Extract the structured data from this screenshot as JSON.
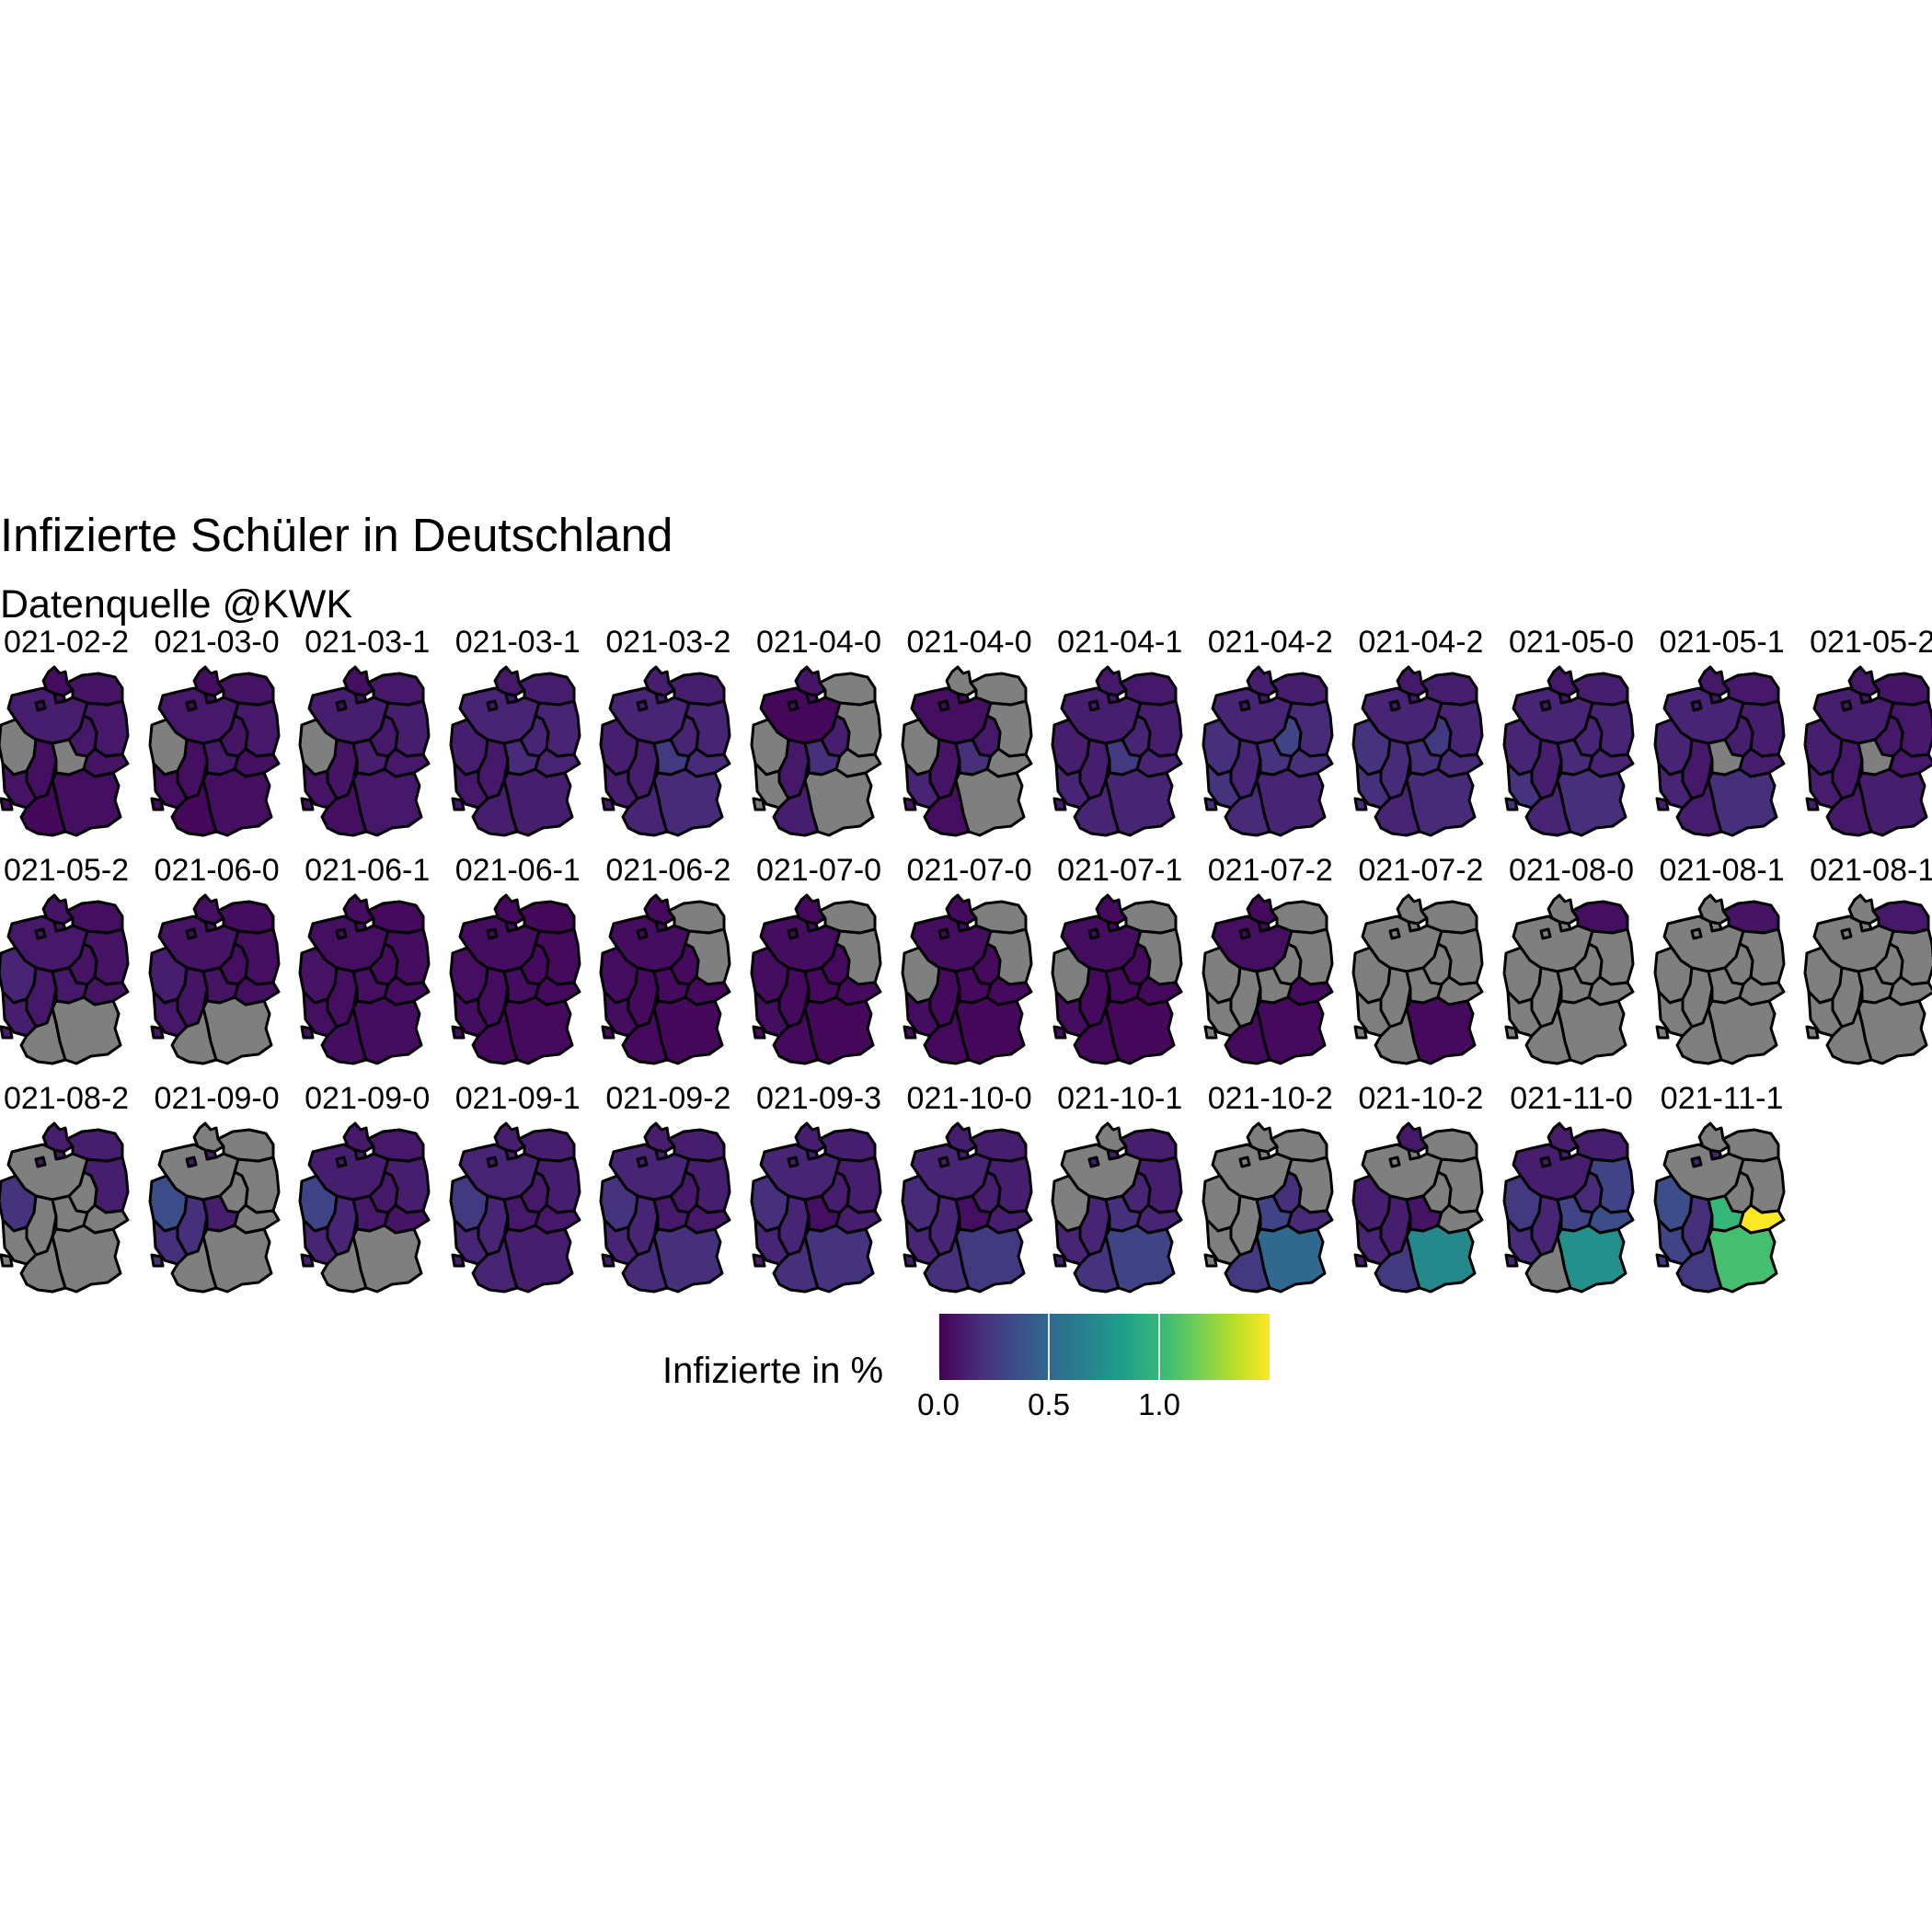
{
  "title": "Infizierte Schüler in Deutschland",
  "subtitle": "Datenquelle @KWK",
  "colors": {
    "missing": "#7f7f7f",
    "border": "#000000",
    "viridis": [
      "#440154",
      "#482878",
      "#3e4a89",
      "#31688e",
      "#26828e",
      "#1f9e89",
      "#35b779",
      "#6ece58",
      "#b5de2b",
      "#fde725"
    ]
  },
  "legend": {
    "title": "Infizierte in %",
    "ticks": [
      {
        "value": 0.0,
        "label": "0.0"
      },
      {
        "value": 0.5,
        "label": "0.5"
      },
      {
        "value": 1.0,
        "label": "1.0"
      }
    ],
    "range": [
      0,
      1.5
    ]
  },
  "chart_data": {
    "type": "heatmap",
    "title": "Infizierte Schüler in Deutschland",
    "subtitle": "Datenquelle @KWK",
    "fill_label": "Infizierte in %",
    "color_scale": "viridis",
    "range": [
      0,
      1.5
    ],
    "regions": [
      "SH",
      "HH",
      "NI",
      "HB",
      "NW",
      "HE",
      "RP",
      "SL",
      "BW",
      "BY",
      "BE",
      "BB",
      "MV",
      "ST",
      "TH",
      "SN"
    ],
    "panels": [
      {
        "label": "021-02-2",
        "values": {
          "SH": 0.05,
          "HH": 0.05,
          "NI": 0.12,
          "HB": 0.05,
          "NW": null,
          "HE": 0.06,
          "RP": 0.08,
          "SL": 0.06,
          "BW": 0.03,
          "BY": 0.06,
          "BE": 0.1,
          "BB": 0.1,
          "MV": 0.08,
          "ST": 0.1,
          "TH": null,
          "SN": 0.08
        }
      },
      {
        "label": "021-03-0",
        "values": {
          "SH": 0.05,
          "HH": 0.05,
          "NI": 0.1,
          "HB": 0.05,
          "NW": null,
          "HE": 0.06,
          "RP": 0.06,
          "SL": 0.05,
          "BW": 0.03,
          "BY": 0.06,
          "BE": 0.1,
          "BB": 0.1,
          "MV": 0.08,
          "ST": 0.08,
          "TH": 0.1,
          "SN": 0.06
        }
      },
      {
        "label": "021-03-1",
        "values": {
          "SH": 0.06,
          "HH": 0.06,
          "NI": 0.12,
          "HB": 0.06,
          "NW": null,
          "HE": 0.08,
          "RP": 0.08,
          "SL": 0.06,
          "BW": 0.06,
          "BY": 0.1,
          "BE": 0.12,
          "BB": 0.12,
          "MV": 0.1,
          "ST": 0.1,
          "TH": 0.12,
          "SN": 0.1
        }
      },
      {
        "label": "021-03-1",
        "values": {
          "SH": 0.1,
          "HH": 0.1,
          "NI": 0.15,
          "HB": 0.1,
          "NW": 0.12,
          "HE": 0.1,
          "RP": 0.1,
          "SL": 0.1,
          "BW": 0.12,
          "BY": 0.12,
          "BE": 0.15,
          "BB": 0.15,
          "MV": 0.12,
          "ST": 0.15,
          "TH": 0.18,
          "SN": 0.15
        }
      },
      {
        "label": "021-03-2",
        "values": {
          "SH": 0.12,
          "HH": 0.1,
          "NI": 0.15,
          "HB": 0.1,
          "NW": 0.12,
          "HE": 0.12,
          "RP": 0.12,
          "SL": 0.12,
          "BW": 0.15,
          "BY": 0.18,
          "BE": 0.18,
          "BB": 0.15,
          "MV": 0.12,
          "ST": 0.15,
          "TH": 0.25,
          "SN": 0.18
        }
      },
      {
        "label": "021-04-0",
        "values": {
          "SH": 0.08,
          "HH": 0.05,
          "NI": 0.03,
          "HB": 0.05,
          "NW": null,
          "HE": 0.1,
          "RP": null,
          "SL": null,
          "BW": 0.12,
          "BY": null,
          "BE": null,
          "BB": null,
          "MV": null,
          "ST": 0.12,
          "TH": 0.2,
          "SN": null
        }
      },
      {
        "label": "021-04-0",
        "values": {
          "SH": null,
          "HH": 0.05,
          "NI": 0.06,
          "HB": 0.05,
          "NW": null,
          "HE": 0.08,
          "RP": 0.15,
          "SL": 0.1,
          "BW": 0.06,
          "BY": null,
          "BE": null,
          "BB": null,
          "MV": null,
          "ST": 0.1,
          "TH": 0.2,
          "SN": null
        }
      },
      {
        "label": "021-04-1",
        "values": {
          "SH": 0.1,
          "HH": 0.1,
          "NI": 0.12,
          "HB": 0.1,
          "NW": 0.12,
          "HE": 0.12,
          "RP": 0.15,
          "SL": 0.12,
          "BW": 0.15,
          "BY": 0.15,
          "BE": 0.15,
          "BB": 0.12,
          "MV": 0.1,
          "ST": 0.15,
          "TH": 0.25,
          "SN": 0.15
        }
      },
      {
        "label": "021-04-2",
        "values": {
          "SH": 0.12,
          "HH": 0.1,
          "NI": 0.15,
          "HB": 0.1,
          "NW": 0.2,
          "HE": 0.15,
          "RP": 0.22,
          "SL": 0.2,
          "BW": 0.18,
          "BY": 0.15,
          "BE": 0.18,
          "BB": 0.18,
          "MV": 0.12,
          "ST": 0.3,
          "TH": 0.22,
          "SN": 0.2
        }
      },
      {
        "label": "021-04-2",
        "values": {
          "SH": 0.1,
          "HH": 0.1,
          "NI": 0.15,
          "HB": 0.1,
          "NW": 0.22,
          "HE": 0.18,
          "RP": 0.2,
          "SL": 0.2,
          "BW": 0.15,
          "BY": 0.18,
          "BE": 0.18,
          "BB": 0.15,
          "MV": 0.12,
          "ST": 0.25,
          "TH": 0.2,
          "SN": 0.18
        }
      },
      {
        "label": "021-05-0",
        "values": {
          "SH": 0.1,
          "HH": 0.1,
          "NI": 0.15,
          "HB": 0.1,
          "NW": 0.15,
          "HE": 0.12,
          "RP": 0.22,
          "SL": 0.2,
          "BW": 0.15,
          "BY": 0.2,
          "BE": 0.15,
          "BB": 0.15,
          "MV": 0.12,
          "ST": 0.15,
          "TH": 0.18,
          "SN": 0.15
        }
      },
      {
        "label": "021-05-1",
        "values": {
          "SH": 0.1,
          "HH": 0.1,
          "NI": 0.15,
          "HB": 0.1,
          "NW": 0.15,
          "HE": 0.1,
          "RP": 0.15,
          "SL": 0.12,
          "BW": 0.12,
          "BY": 0.2,
          "BE": 0.12,
          "BB": 0.12,
          "MV": 0.1,
          "ST": 0.12,
          "TH": null,
          "SN": 0.12
        }
      },
      {
        "label": "021-05-2",
        "values": {
          "SH": 0.1,
          "HH": 0.1,
          "NI": 0.12,
          "HB": 0.1,
          "NW": 0.12,
          "HE": 0.1,
          "RP": 0.12,
          "SL": 0.12,
          "BW": 0.1,
          "BY": 0.12,
          "BE": 0.1,
          "BB": 0.1,
          "MV": 0.08,
          "ST": 0.1,
          "TH": null,
          "SN": 0.1
        }
      },
      {
        "label": "021-05-2",
        "values": {
          "SH": 0.08,
          "HH": 0.08,
          "NI": 0.1,
          "HB": 0.08,
          "NW": 0.15,
          "HE": 0.1,
          "RP": 0.12,
          "SL": 0.12,
          "BW": null,
          "BY": null,
          "BE": 0.1,
          "BB": 0.08,
          "MV": 0.06,
          "ST": 0.08,
          "TH": 0.1,
          "SN": 0.08
        }
      },
      {
        "label": "021-06-0",
        "values": {
          "SH": 0.06,
          "HH": 0.06,
          "NI": 0.08,
          "HB": 0.06,
          "NW": 0.12,
          "HE": 0.08,
          "RP": 0.1,
          "SL": 0.1,
          "BW": null,
          "BY": null,
          "BE": 0.08,
          "BB": 0.06,
          "MV": 0.05,
          "ST": 0.06,
          "TH": 0.08,
          "SN": 0.06
        }
      },
      {
        "label": "021-06-1",
        "values": {
          "SH": 0.05,
          "HH": 0.05,
          "NI": 0.06,
          "HB": 0.05,
          "NW": 0.08,
          "HE": 0.06,
          "RP": 0.06,
          "SL": 0.06,
          "BW": 0.05,
          "BY": 0.05,
          "BE": 0.06,
          "BB": 0.05,
          "MV": 0.04,
          "ST": 0.05,
          "TH": 0.06,
          "SN": 0.05
        }
      },
      {
        "label": "021-06-1",
        "values": {
          "SH": 0.04,
          "HH": 0.04,
          "NI": 0.05,
          "HB": 0.04,
          "NW": 0.06,
          "HE": 0.05,
          "RP": 0.05,
          "SL": 0.05,
          "BW": 0.04,
          "BY": 0.04,
          "BE": 0.05,
          "BB": 0.04,
          "MV": 0.03,
          "ST": 0.04,
          "TH": 0.05,
          "SN": 0.04
        }
      },
      {
        "label": "021-06-2",
        "values": {
          "SH": 0.04,
          "HH": 0.04,
          "NI": 0.05,
          "HB": 0.04,
          "NW": 0.05,
          "HE": 0.04,
          "RP": 0.05,
          "SL": 0.05,
          "BW": 0.04,
          "BY": 0.03,
          "BE": null,
          "BB": null,
          "MV": null,
          "ST": 0.04,
          "TH": 0.04,
          "SN": 0.04
        }
      },
      {
        "label": "021-07-0",
        "values": {
          "SH": 0.04,
          "HH": 0.04,
          "NI": 0.05,
          "HB": 0.04,
          "NW": 0.05,
          "HE": 0.04,
          "RP": 0.05,
          "SL": 0.05,
          "BW": 0.04,
          "BY": 0.03,
          "BE": null,
          "BB": null,
          "MV": null,
          "ST": 0.04,
          "TH": 0.04,
          "SN": 0.04
        }
      },
      {
        "label": "021-07-0",
        "values": {
          "SH": 0.04,
          "HH": 0.04,
          "NI": 0.05,
          "HB": 0.04,
          "NW": null,
          "HE": 0.04,
          "RP": 0.05,
          "SL": 0.05,
          "BW": 0.04,
          "BY": 0.03,
          "BE": null,
          "BB": null,
          "MV": null,
          "ST": 0.04,
          "TH": 0.04,
          "SN": 0.04
        }
      },
      {
        "label": "021-07-1",
        "values": {
          "SH": 0.04,
          "HH": 0.04,
          "NI": 0.05,
          "HB": 0.04,
          "NW": null,
          "HE": 0.04,
          "RP": 0.05,
          "SL": 0.05,
          "BW": 0.04,
          "BY": 0.03,
          "BE": null,
          "BB": null,
          "MV": null,
          "ST": 0.04,
          "TH": 0.04,
          "SN": 0.04
        }
      },
      {
        "label": "021-07-2",
        "values": {
          "SH": 0.04,
          "HH": 0.04,
          "NI": 0.06,
          "HB": 0.04,
          "NW": null,
          "HE": null,
          "RP": null,
          "SL": null,
          "BW": 0.04,
          "BY": 0.04,
          "BE": null,
          "BB": null,
          "MV": null,
          "ST": null,
          "TH": null,
          "SN": 0.04
        }
      },
      {
        "label": "021-07-2",
        "values": {
          "SH": null,
          "HH": null,
          "NI": null,
          "HB": null,
          "NW": null,
          "HE": null,
          "RP": null,
          "SL": null,
          "BW": null,
          "BY": 0.04,
          "BE": null,
          "BB": null,
          "MV": null,
          "ST": null,
          "TH": null,
          "SN": null
        }
      },
      {
        "label": "021-08-0",
        "values": {
          "SH": null,
          "HH": null,
          "NI": null,
          "HB": null,
          "NW": null,
          "HE": null,
          "RP": null,
          "SL": null,
          "BW": null,
          "BY": null,
          "BE": null,
          "BB": null,
          "MV": 0.06,
          "ST": null,
          "TH": null,
          "SN": null
        }
      },
      {
        "label": "021-08-1",
        "values": {
          "SH": null,
          "HH": null,
          "NI": null,
          "HB": null,
          "NW": null,
          "HE": null,
          "RP": null,
          "SL": null,
          "BW": null,
          "BY": null,
          "BE": 0.08,
          "BB": null,
          "MV": 0.08,
          "ST": null,
          "TH": null,
          "SN": null
        }
      },
      {
        "label": "021-08-1",
        "values": {
          "SH": null,
          "HH": null,
          "NI": null,
          "HB": null,
          "NW": null,
          "HE": null,
          "RP": null,
          "SL": null,
          "BW": null,
          "BY": null,
          "BE": 0.1,
          "BB": null,
          "MV": 0.1,
          "ST": null,
          "TH": null,
          "SN": null
        }
      },
      {
        "label": "021-08-2",
        "values": {
          "SH": 0.12,
          "HH": 0.1,
          "NI": null,
          "HB": 0.1,
          "NW": 0.22,
          "HE": null,
          "RP": null,
          "SL": null,
          "BW": null,
          "BY": null,
          "BE": 0.12,
          "BB": 0.12,
          "MV": 0.12,
          "ST": null,
          "TH": null,
          "SN": null
        }
      },
      {
        "label": "021-09-0",
        "values": {
          "SH": null,
          "HH": 0.12,
          "NI": null,
          "HB": 0.12,
          "NW": 0.35,
          "HE": 0.2,
          "RP": 0.2,
          "SL": 0.2,
          "BW": null,
          "BY": null,
          "BE": null,
          "BB": null,
          "MV": null,
          "ST": null,
          "TH": 0.12,
          "SN": null
        }
      },
      {
        "label": "021-09-0",
        "values": {
          "SH": 0.1,
          "HH": 0.1,
          "NI": 0.12,
          "HB": 0.1,
          "NW": 0.3,
          "HE": 0.15,
          "RP": 0.15,
          "SL": 0.12,
          "BW": null,
          "BY": null,
          "BE": 0.1,
          "BB": 0.12,
          "MV": 0.1,
          "ST": 0.1,
          "TH": 0.1,
          "SN": 0.08
        }
      },
      {
        "label": "021-09-1",
        "values": {
          "SH": 0.12,
          "HH": 0.12,
          "NI": 0.15,
          "HB": 0.12,
          "NW": 0.25,
          "HE": 0.15,
          "RP": 0.15,
          "SL": 0.12,
          "BW": 0.15,
          "BY": 0.12,
          "BE": 0.12,
          "BB": 0.12,
          "MV": 0.12,
          "ST": 0.1,
          "TH": 0.1,
          "SN": 0.1
        }
      },
      {
        "label": "021-09-2",
        "values": {
          "SH": 0.12,
          "HH": 0.12,
          "NI": 0.15,
          "HB": 0.12,
          "NW": 0.22,
          "HE": 0.15,
          "RP": 0.15,
          "SL": 0.12,
          "BW": 0.18,
          "BY": 0.2,
          "BE": 0.12,
          "BB": 0.12,
          "MV": 0.12,
          "ST": 0.1,
          "TH": 0.1,
          "SN": 0.1
        }
      },
      {
        "label": "021-09-3",
        "values": {
          "SH": 0.12,
          "HH": 0.12,
          "NI": 0.15,
          "HB": 0.12,
          "NW": 0.2,
          "HE": 0.15,
          "RP": 0.15,
          "SL": 0.12,
          "BW": 0.2,
          "BY": 0.22,
          "BE": 0.12,
          "BB": 0.12,
          "MV": 0.12,
          "ST": 0.12,
          "TH": 0.06,
          "SN": 0.12
        }
      },
      {
        "label": "021-10-0",
        "values": {
          "SH": 0.12,
          "HH": 0.12,
          "NI": 0.15,
          "HB": 0.12,
          "NW": 0.18,
          "HE": 0.15,
          "RP": 0.15,
          "SL": 0.12,
          "BW": 0.2,
          "BY": 0.25,
          "BE": 0.12,
          "BB": 0.12,
          "MV": 0.12,
          "ST": 0.12,
          "TH": 0.06,
          "SN": 0.12
        }
      },
      {
        "label": "021-10-1",
        "values": {
          "SH": null,
          "HH": 0.12,
          "NI": null,
          "HB": 0.12,
          "NW": null,
          "HE": 0.15,
          "RP": 0.15,
          "SL": 0.12,
          "BW": 0.22,
          "BY": 0.3,
          "BE": 0.12,
          "BB": 0.12,
          "MV": 0.12,
          "ST": 0.15,
          "TH": 0.2,
          "SN": 0.15
        }
      },
      {
        "label": "021-10-2",
        "values": {
          "SH": null,
          "HH": null,
          "NI": null,
          "HB": null,
          "NW": null,
          "HE": null,
          "RP": null,
          "SL": null,
          "BW": 0.25,
          "BY": 0.5,
          "BE": 0.15,
          "BB": null,
          "MV": null,
          "ST": 0.2,
          "TH": 0.3,
          "SN": 0.18
        }
      },
      {
        "label": "021-10-2",
        "values": {
          "SH": 0.1,
          "HH": null,
          "NI": null,
          "HB": null,
          "NW": 0.12,
          "HE": 0.12,
          "RP": 0.15,
          "SL": 0.12,
          "BW": 0.25,
          "BY": 0.7,
          "BE": null,
          "BB": null,
          "MV": null,
          "ST": null,
          "TH": 0.08,
          "SN": null
        }
      },
      {
        "label": "021-11-0",
        "values": {
          "SH": 0.12,
          "HH": 0.12,
          "NI": 0.12,
          "HB": 0.12,
          "NW": 0.25,
          "HE": 0.15,
          "RP": 0.18,
          "SL": 0.15,
          "BW": null,
          "BY": 0.75,
          "BE": 0.15,
          "BB": 0.3,
          "MV": 0.12,
          "ST": 0.18,
          "TH": 0.3,
          "SN": 0.35
        }
      },
      {
        "label": "021-11-1",
        "values": {
          "SH": null,
          "HH": 0.15,
          "NI": null,
          "HB": 0.15,
          "NW": 0.35,
          "HE": 0.2,
          "RP": 0.3,
          "SL": 0.25,
          "BW": 0.25,
          "BY": 1.05,
          "BE": null,
          "BB": null,
          "MV": null,
          "ST": null,
          "TH": 1.0,
          "SN": 1.5
        }
      }
    ]
  }
}
